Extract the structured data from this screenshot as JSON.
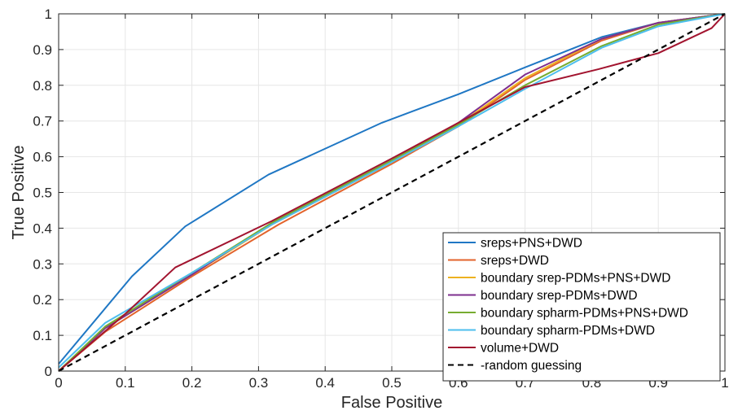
{
  "chart_data": {
    "type": "line",
    "title": "",
    "xlabel": "False Positive",
    "ylabel": "True Positive",
    "xlim": [
      0,
      1
    ],
    "ylim": [
      0,
      1
    ],
    "xticks": [
      "0",
      "0.1",
      "0.2",
      "0.3",
      "0.4",
      "0.5",
      "0.6",
      "0.7",
      "0.8",
      "0.9",
      "1"
    ],
    "yticks": [
      "0",
      "0.1",
      "0.2",
      "0.3",
      "0.4",
      "0.5",
      "0.6",
      "0.7",
      "0.8",
      "0.9",
      "1"
    ],
    "grid": true,
    "legend_position": "bottom-right",
    "series": [
      {
        "name": "sreps+PNS+DWD",
        "color": "#1f77c4",
        "style": "solid",
        "points": [
          [
            0,
            0.02
          ],
          [
            0.11,
            0.265
          ],
          [
            0.19,
            0.405
          ],
          [
            0.315,
            0.55
          ],
          [
            0.485,
            0.695
          ],
          [
            0.6,
            0.775
          ],
          [
            0.7,
            0.85
          ],
          [
            0.815,
            0.935
          ],
          [
            0.9,
            0.975
          ],
          [
            1,
            1
          ]
        ]
      },
      {
        "name": "sreps+DWD",
        "color": "#e3632b",
        "style": "solid",
        "points": [
          [
            0,
            0
          ],
          [
            0.07,
            0.11
          ],
          [
            0.2,
            0.265
          ],
          [
            0.33,
            0.41
          ],
          [
            0.5,
            0.58
          ],
          [
            0.6,
            0.685
          ],
          [
            0.7,
            0.815
          ],
          [
            0.815,
            0.925
          ],
          [
            0.9,
            0.975
          ],
          [
            1,
            1
          ]
        ]
      },
      {
        "name": "boundary srep-PDMs+PNS+DWD",
        "color": "#edb120",
        "style": "solid",
        "points": [
          [
            0,
            0
          ],
          [
            0.07,
            0.12
          ],
          [
            0.2,
            0.27
          ],
          [
            0.32,
            0.41
          ],
          [
            0.5,
            0.585
          ],
          [
            0.6,
            0.69
          ],
          [
            0.7,
            0.82
          ],
          [
            0.815,
            0.93
          ],
          [
            0.9,
            0.975
          ],
          [
            1,
            1
          ]
        ]
      },
      {
        "name": "boundary srep-PDMs+DWD",
        "color": "#7e2f8e",
        "style": "solid",
        "points": [
          [
            0,
            0
          ],
          [
            0.07,
            0.12
          ],
          [
            0.2,
            0.27
          ],
          [
            0.32,
            0.415
          ],
          [
            0.5,
            0.59
          ],
          [
            0.6,
            0.695
          ],
          [
            0.7,
            0.83
          ],
          [
            0.815,
            0.93
          ],
          [
            0.9,
            0.975
          ],
          [
            1,
            1
          ]
        ]
      },
      {
        "name": "boundary spharm-PDMs+PNS+DWD",
        "color": "#77ac30",
        "style": "solid",
        "points": [
          [
            0,
            0
          ],
          [
            0.07,
            0.125
          ],
          [
            0.2,
            0.275
          ],
          [
            0.32,
            0.415
          ],
          [
            0.5,
            0.59
          ],
          [
            0.6,
            0.69
          ],
          [
            0.7,
            0.8
          ],
          [
            0.815,
            0.91
          ],
          [
            0.9,
            0.97
          ],
          [
            1,
            1
          ]
        ]
      },
      {
        "name": "boundary spharm-PDMs+DWD",
        "color": "#4dbeee",
        "style": "solid",
        "points": [
          [
            0,
            0.01
          ],
          [
            0.07,
            0.135
          ],
          [
            0.2,
            0.275
          ],
          [
            0.32,
            0.41
          ],
          [
            0.5,
            0.585
          ],
          [
            0.6,
            0.685
          ],
          [
            0.7,
            0.79
          ],
          [
            0.815,
            0.905
          ],
          [
            0.9,
            0.965
          ],
          [
            1,
            1
          ]
        ]
      },
      {
        "name": "volume+DWD",
        "color": "#a2142f",
        "style": "solid",
        "points": [
          [
            0,
            0
          ],
          [
            0.1,
            0.16
          ],
          [
            0.175,
            0.29
          ],
          [
            0.32,
            0.42
          ],
          [
            0.5,
            0.595
          ],
          [
            0.6,
            0.695
          ],
          [
            0.7,
            0.795
          ],
          [
            0.81,
            0.845
          ],
          [
            0.9,
            0.89
          ],
          [
            0.98,
            0.96
          ],
          [
            1,
            1
          ]
        ]
      },
      {
        "name": "-random guessing",
        "color": "#000000",
        "style": "dashed",
        "points": [
          [
            0,
            0
          ],
          [
            1,
            1
          ]
        ]
      }
    ]
  }
}
